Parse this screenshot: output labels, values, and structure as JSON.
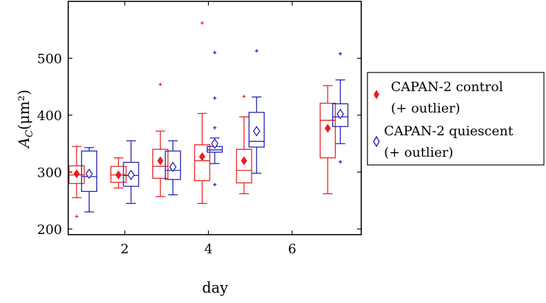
{
  "chart_data": {
    "type": "box",
    "title": "",
    "xlabel": "day",
    "ylabel_main": "A",
    "ylabel_sub": "C",
    "ylabel_unit": "(μm²)",
    "xlim": [
      0.65,
      7.65
    ],
    "ylim": [
      190,
      600
    ],
    "xticks": [
      2,
      4,
      6
    ],
    "yticks": [
      200,
      300,
      400,
      500
    ],
    "grid": false,
    "legend_placement": "right",
    "colors": {
      "control": "#ee1c1c",
      "quiescent": "#1c1cb4"
    },
    "series": [
      {
        "name": "CAPAN-2 control",
        "note": "(+ outlier)",
        "marker": "filled-diamond",
        "boxes": [
          {
            "x": 0.85,
            "whisker_low": 255,
            "q1": 280,
            "median": 295,
            "q3": 311,
            "whisker_high": 345,
            "mean": 297,
            "outliers": [
              222
            ]
          },
          {
            "x": 1.85,
            "whisker_low": 272,
            "q1": 282,
            "median": 295,
            "q3": 310,
            "whisker_high": 325,
            "mean": 295,
            "outliers": []
          },
          {
            "x": 2.85,
            "whisker_low": 257,
            "q1": 289,
            "median": 310,
            "q3": 340,
            "whisker_high": 372,
            "mean": 320,
            "outliers": [
              454
            ]
          },
          {
            "x": 3.85,
            "whisker_low": 245,
            "q1": 285,
            "median": 320,
            "q3": 348,
            "whisker_high": 403,
            "mean": 327,
            "outliers": [
              562
            ]
          },
          {
            "x": 4.85,
            "whisker_low": 262,
            "q1": 281,
            "median": 303,
            "q3": 340,
            "whisker_high": 397,
            "mean": 320,
            "outliers": [
              433
            ]
          },
          {
            "x": 6.85,
            "whisker_low": 262,
            "q1": 325,
            "median": 391,
            "q3": 421,
            "whisker_high": 452,
            "mean": 377,
            "outliers": []
          }
        ]
      },
      {
        "name": "CAPAN-2 quiescent",
        "note": "(+ outlier)",
        "marker": "open-diamond",
        "boxes": [
          {
            "x": 1.15,
            "whisker_low": 230,
            "q1": 266,
            "median": 292,
            "q3": 337,
            "whisker_high": 343,
            "mean": 297,
            "outliers": []
          },
          {
            "x": 2.15,
            "whisker_low": 245,
            "q1": 275,
            "median": 294,
            "q3": 317,
            "whisker_high": 355,
            "mean": 295,
            "outliers": []
          },
          {
            "x": 3.15,
            "whisker_low": 260,
            "q1": 287,
            "median": 303,
            "q3": 337,
            "whisker_high": 355,
            "mean": 309,
            "outliers": []
          },
          {
            "x": 4.15,
            "whisker_low": 315,
            "q1": 335,
            "median": 339,
            "q3": 345,
            "whisker_high": 360,
            "mean": 350,
            "outliers": [
              278,
              378,
              430,
              510
            ]
          },
          {
            "x": 5.15,
            "whisker_low": 298,
            "q1": 344,
            "median": 354,
            "q3": 405,
            "whisker_high": 432,
            "mean": 372,
            "outliers": [
              513
            ]
          },
          {
            "x": 7.15,
            "whisker_low": 350,
            "q1": 380,
            "median": 397,
            "q3": 420,
            "whisker_high": 462,
            "mean": 402,
            "outliers": [
              318,
              508
            ]
          }
        ]
      }
    ]
  }
}
